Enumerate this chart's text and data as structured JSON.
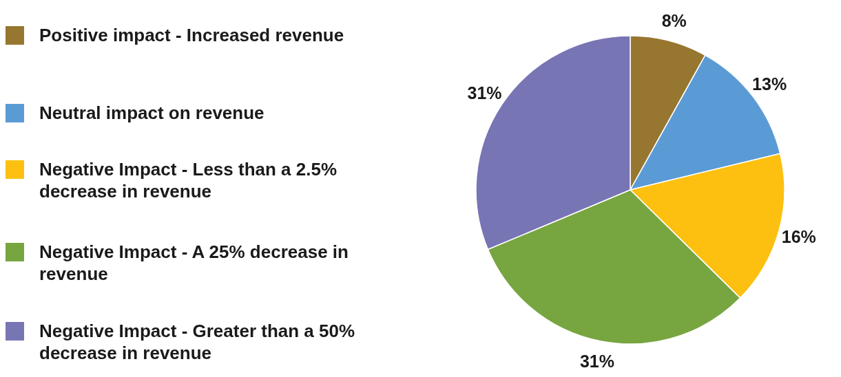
{
  "chart_data": {
    "type": "pie",
    "categories": [
      "Positive impact - Increased revenue",
      "Neutral impact on revenue",
      "Negative Impact - Less than a 2.5% decrease in revenue",
      "Negative Impact - A 25% decrease in revenue",
      "Negative Impact - Greater than a 50% decrease in revenue"
    ],
    "values": [
      8,
      13,
      16,
      31,
      31
    ],
    "colors": [
      "#977630",
      "#5b9bd5",
      "#fdc010",
      "#77a540",
      "#7875b5"
    ],
    "value_labels": [
      "8%",
      "13%",
      "16%",
      "31%",
      "31%"
    ],
    "legend": "left"
  }
}
